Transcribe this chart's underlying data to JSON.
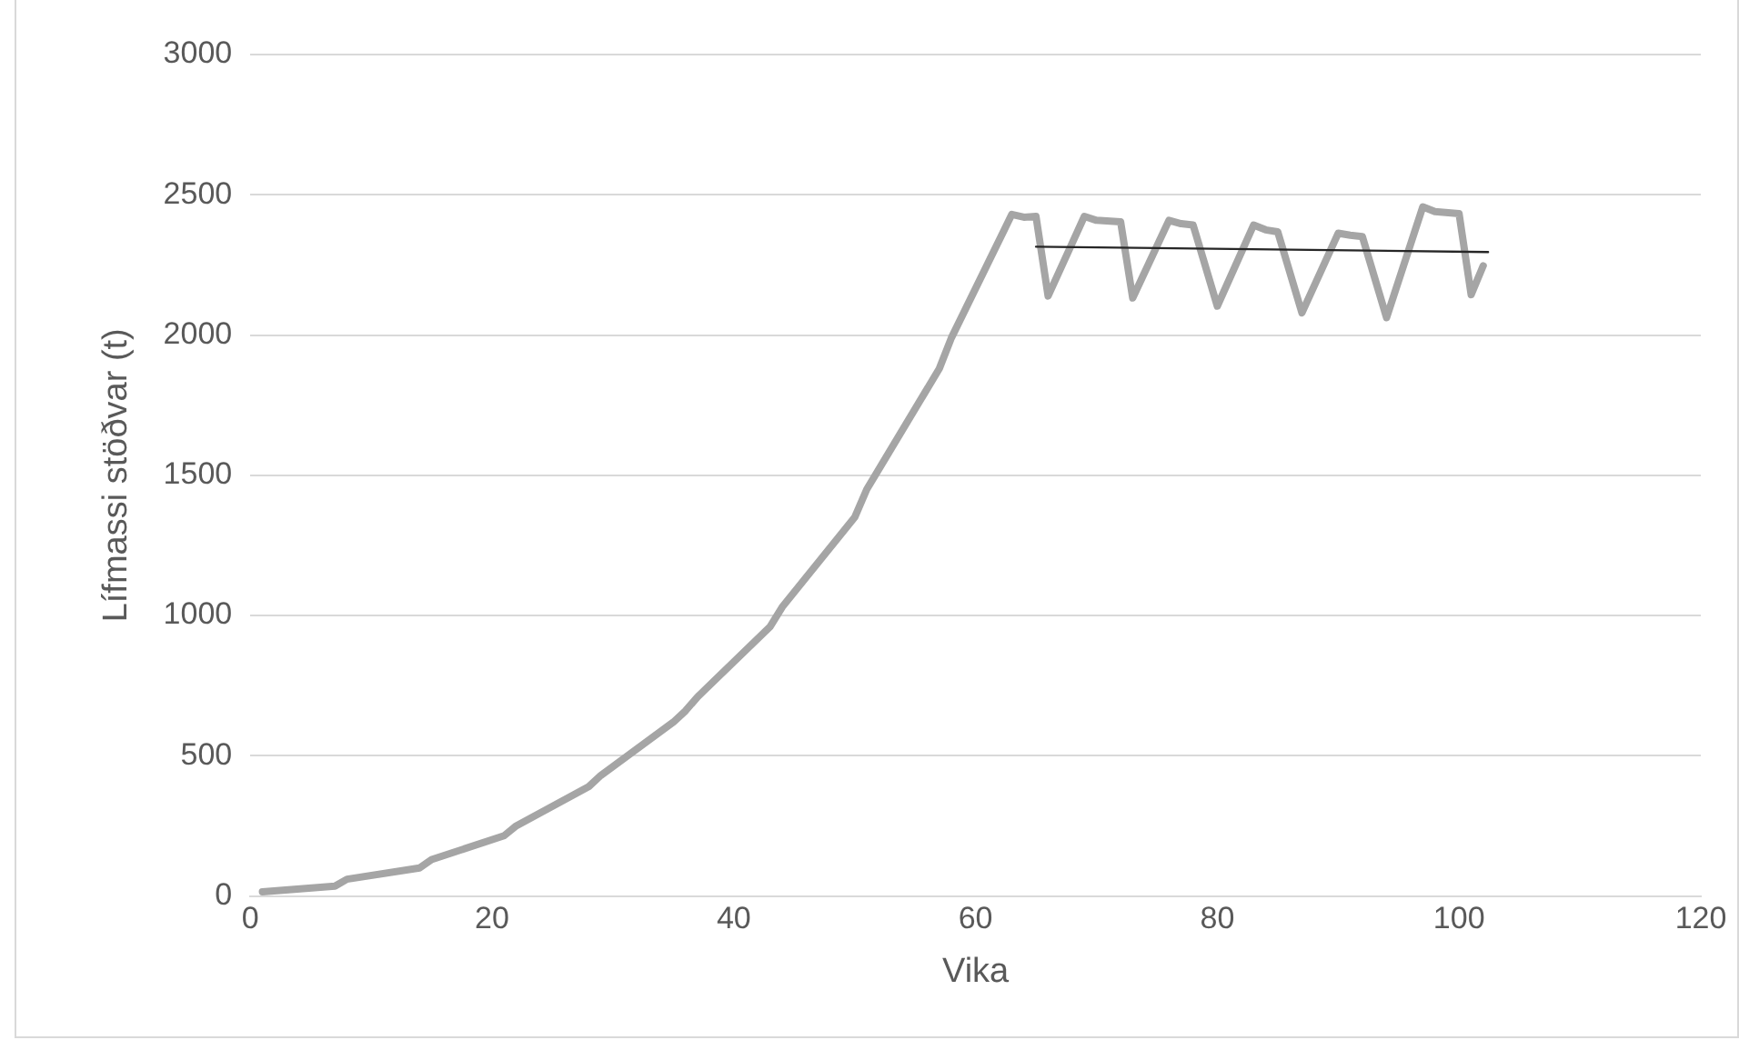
{
  "chart_data": {
    "type": "line",
    "xlabel": "Vika",
    "ylabel": "Lífmassi stöðvar (t)",
    "series": [
      {
        "color": "#a5a5a5",
        "x": [
          1,
          7,
          8,
          14,
          15,
          21,
          22,
          28,
          29,
          35,
          36,
          37,
          43,
          44,
          50,
          51,
          57,
          58,
          63,
          64,
          65,
          66,
          69,
          70,
          72,
          73,
          76,
          77,
          78,
          80,
          83,
          84,
          85,
          87,
          90,
          91,
          92,
          94,
          97,
          98,
          100,
          101,
          102
        ],
        "values": [
          15,
          35,
          60,
          100,
          130,
          215,
          250,
          390,
          430,
          620,
          660,
          710,
          960,
          1030,
          1350,
          1450,
          1880,
          1990,
          2430,
          2420,
          2423,
          2139,
          2423,
          2409,
          2404,
          2132,
          2409,
          2397,
          2392,
          2103,
          2392,
          2375,
          2368,
          2079,
          2363,
          2356,
          2351,
          2062,
          2457,
          2440,
          2433,
          2144,
          2247
        ]
      },
      {
        "color": "#262626",
        "x": [
          65,
          102.4
        ],
        "values": [
          2315,
          2296
        ]
      }
    ],
    "xlim": [
      0,
      120
    ],
    "xticks": [
      0,
      20,
      40,
      60,
      80,
      100,
      120
    ],
    "ylim": [
      0,
      3000
    ],
    "yticks": [
      0,
      500,
      1000,
      1500,
      2000,
      2500,
      3000
    ],
    "grid": "y",
    "legend": false,
    "marker": "none"
  }
}
